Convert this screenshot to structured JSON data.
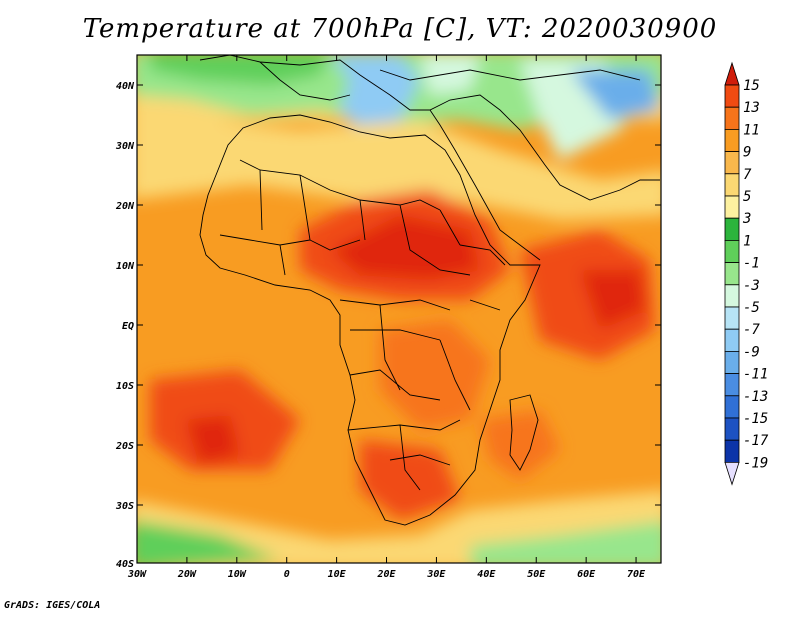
{
  "title": "Temperature at 700hPa [C], VT: 2020030900",
  "footer": "GrADS: IGES/COLA",
  "axes": {
    "lon_ticks": [
      "30W",
      "20W",
      "10W",
      "0",
      "10E",
      "20E",
      "30E",
      "40E",
      "50E",
      "60E",
      "70E"
    ],
    "lat_ticks": [
      "40N",
      "30N",
      "20N",
      "10N",
      "EQ",
      "10S",
      "20S",
      "30S",
      "40S"
    ]
  },
  "colorbar": {
    "labels": [
      "15",
      "13",
      "11",
      "9",
      "7",
      "5",
      "3",
      "1",
      "-1",
      "-3",
      "-5",
      "-7",
      "-9",
      "-11",
      "-13",
      "-15",
      "-17",
      "-19"
    ],
    "colors": [
      "#e0280e",
      "#f04b12",
      "#f7741a",
      "#f89c22",
      "#f9b84c",
      "#fbd873",
      "#fdf1a0",
      "#2cb43c",
      "#5fcf5a",
      "#98e68c",
      "#d5f8df",
      "#b7e4f6",
      "#8fcbf4",
      "#6aaeea",
      "#4a8de2",
      "#3070d6",
      "#1d52c2",
      "#0c34a8",
      "#061f78"
    ],
    "top_arrow_color": "#d01d0b",
    "bottom_arrow_color": "#e6e0ff"
  }
}
